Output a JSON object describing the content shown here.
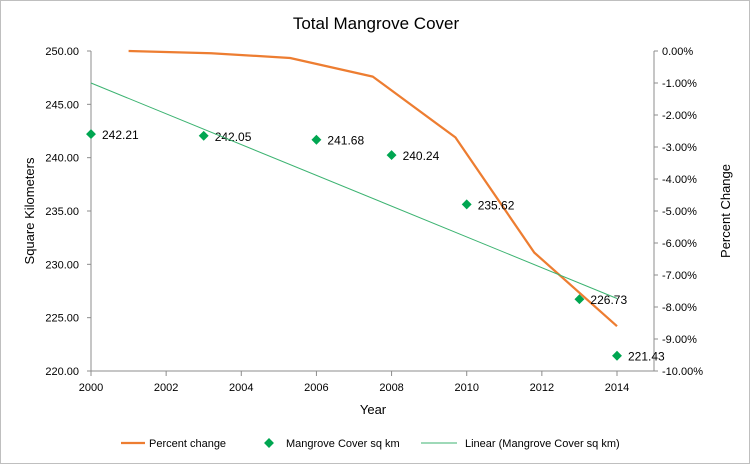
{
  "chart_data": {
    "type": "scatter",
    "title": "Total Mangrove Cover",
    "xlabel": "Year",
    "ylabel": "Square Kilometers",
    "y2label": "Percent Change",
    "xlim": [
      2000,
      2015
    ],
    "ylim": [
      220,
      250
    ],
    "y2lim": [
      -10,
      0
    ],
    "x_ticks": [
      "2000",
      "2002",
      "2004",
      "2006",
      "2008",
      "2010",
      "2012",
      "2014"
    ],
    "y_ticks": [
      "220.00",
      "225.00",
      "230.00",
      "235.00",
      "240.00",
      "245.00",
      "250.00"
    ],
    "y2_ticks": [
      "0.00%",
      "-1.00%",
      "-2.00%",
      "-3.00%",
      "-4.00%",
      "-5.00%",
      "-6.00%",
      "-7.00%",
      "-8.00%",
      "-9.00%",
      "-10.00%"
    ],
    "grid": false,
    "legend_position": "bottom",
    "series": [
      {
        "name": "Percent change",
        "kind": "line",
        "axis": "right",
        "color": "#ed7d31",
        "x": [
          2001,
          2003.2,
          2005.3,
          2007.5,
          2009.7,
          2011.8,
          2014
        ],
        "values": [
          0.0,
          -0.07,
          -0.22,
          -0.8,
          -2.7,
          -6.3,
          -8.6
        ]
      },
      {
        "name": "Mangrove Cover sq km",
        "kind": "scatter",
        "axis": "left",
        "color": "#00a651",
        "x": [
          2000,
          2003,
          2006,
          2008,
          2010,
          2013,
          2014
        ],
        "values": [
          242.21,
          242.05,
          241.68,
          240.24,
          235.62,
          226.73,
          221.43
        ],
        "labels": [
          "242.21",
          "242.05",
          "241.68",
          "240.24",
          "235.62",
          "226.73",
          "221.43"
        ]
      },
      {
        "name": "Linear (Mangrove Cover sq km)",
        "kind": "trendline",
        "axis": "left",
        "color": "#3cb371",
        "x": [
          2000,
          2014
        ],
        "values": [
          247.0,
          226.8
        ]
      }
    ]
  }
}
